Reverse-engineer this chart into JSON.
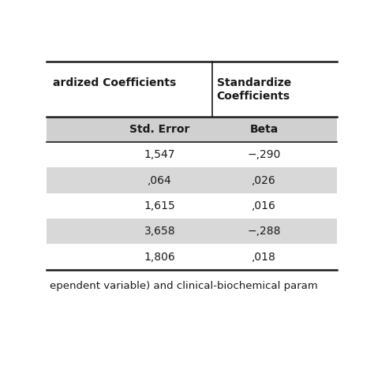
{
  "col_headers": [
    "Std. Error",
    "Beta"
  ],
  "col_group_header_left": "ardized Coefficients",
  "col_group_header_right": "Standardize\nCoefficients",
  "rows": [
    [
      "1,547",
      "−,290"
    ],
    [
      ",064",
      ",026"
    ],
    [
      "1,615",
      ",016"
    ],
    [
      "3,658",
      "−,288"
    ],
    [
      "1,806",
      ",018"
    ]
  ],
  "shaded_rows": [
    1,
    3
  ],
  "bg_color": "#ffffff",
  "shaded_color": "#d8d8d8",
  "header_shaded_color": "#d0d0d0",
  "line_color": "#1a1a1a",
  "text_color": "#1a1a1a",
  "footer_text": "ependent variable) and clinical-biochemical param",
  "fig_width": 4.74,
  "fig_height": 4.74,
  "dpi": 100
}
